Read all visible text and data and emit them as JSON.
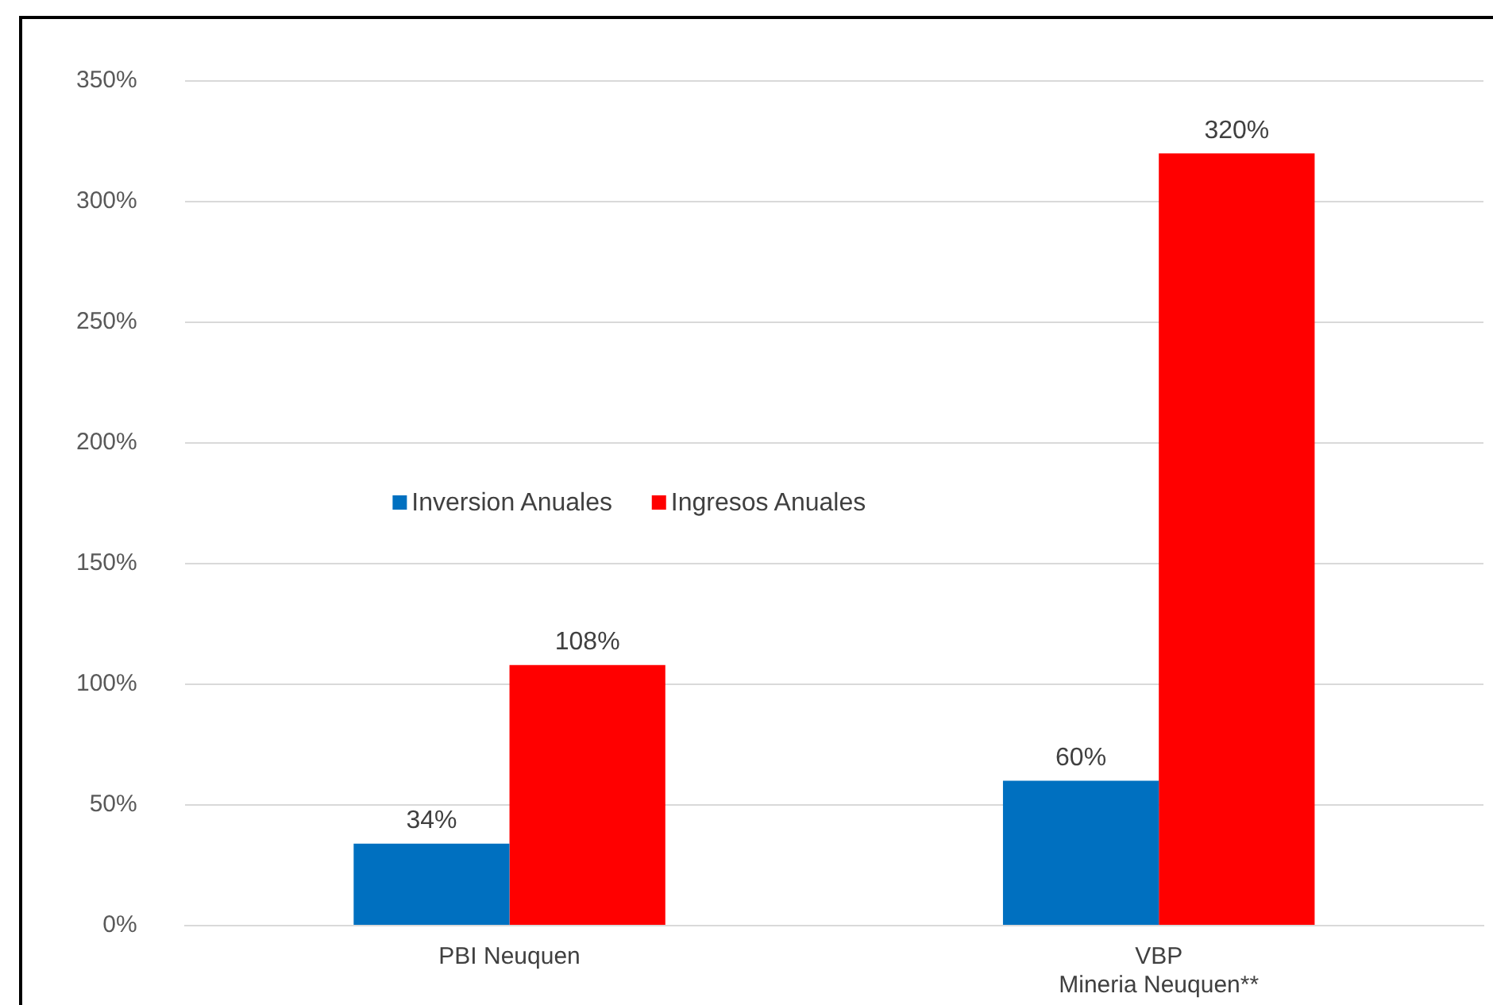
{
  "chart_data": {
    "type": "bar",
    "categories": [
      "PBI Neuquen",
      "VBP\nMineria Neuquen**"
    ],
    "series": [
      {
        "name": "Inversion Anuales",
        "color": "#0070c0",
        "values": [
          34,
          60
        ]
      },
      {
        "name": "Ingresos Anuales",
        "color": "#ff0000",
        "values": [
          108,
          320
        ]
      }
    ],
    "ylim": [
      0,
      350
    ],
    "yticks": [
      {
        "value": 0,
        "label": "0%"
      },
      {
        "value": 50,
        "label": "50%"
      },
      {
        "value": 100,
        "label": "100%"
      },
      {
        "value": 150,
        "label": "150%"
      },
      {
        "value": 200,
        "label": "200%"
      },
      {
        "value": 250,
        "label": "250%"
      },
      {
        "value": 300,
        "label": "300%"
      },
      {
        "value": 350,
        "label": "350%"
      }
    ],
    "value_labels": [
      [
        "34%",
        "60%"
      ],
      [
        "108%",
        "320%"
      ]
    ],
    "grid": "y",
    "legend": "left"
  }
}
